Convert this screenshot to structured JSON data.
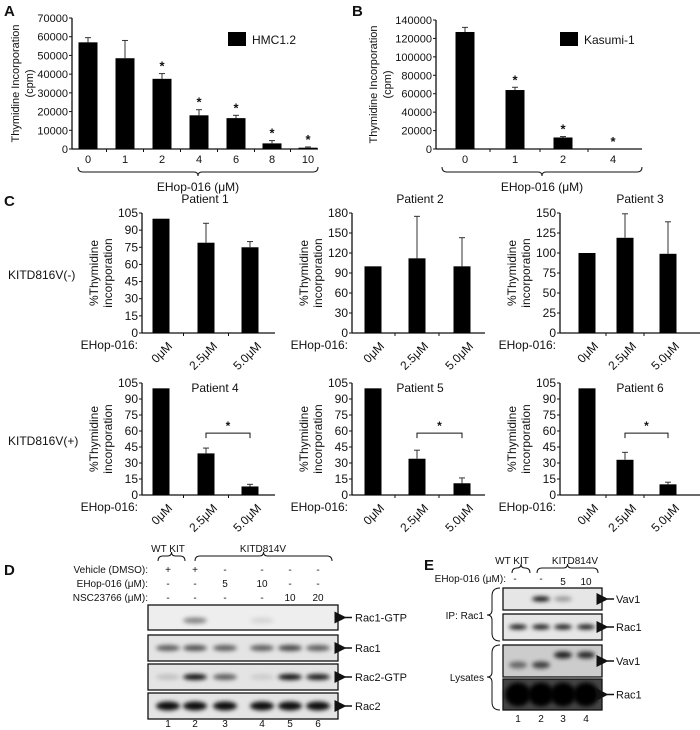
{
  "panels": {
    "A": "A",
    "B": "B",
    "C": "C",
    "D": "D",
    "E": "E"
  },
  "chart_data": [
    {
      "id": "A",
      "type": "bar",
      "legend": "HMC1.2",
      "legend_placement": "top-right",
      "ylabel": [
        "Thymidine Incorporation",
        "(cpm)"
      ],
      "xlabel": "EHop-016 (μM)",
      "categories": [
        "0",
        "1",
        "2",
        "4",
        "6",
        "8",
        "10"
      ],
      "values": [
        57000,
        48500,
        37500,
        18000,
        16500,
        3000,
        700
      ],
      "errors": [
        2500,
        9500,
        2800,
        3000,
        1500,
        1500,
        400
      ],
      "significant": [
        false,
        false,
        true,
        true,
        true,
        true,
        true
      ],
      "yticks": [
        0,
        10000,
        20000,
        30000,
        40000,
        50000,
        60000,
        70000
      ],
      "ylim": [
        0,
        70000
      ]
    },
    {
      "id": "B",
      "type": "bar",
      "legend": "Kasumi-1",
      "legend_placement": "top-right",
      "ylabel": [
        "Thymidine Incorporation",
        "(cpm)"
      ],
      "xlabel": "EHop-016 (μM)",
      "categories": [
        "0",
        "1",
        "2",
        "4"
      ],
      "values": [
        127000,
        64000,
        12500,
        0
      ],
      "errors": [
        5000,
        3000,
        1000,
        0
      ],
      "significant": [
        false,
        true,
        true,
        true
      ],
      "yticks": [
        0,
        20000,
        40000,
        60000,
        80000,
        100000,
        120000,
        140000
      ],
      "ylim": [
        0,
        140000
      ]
    },
    {
      "id": "P1",
      "type": "bar",
      "title": "Patient 1",
      "ylabel": [
        "%Thymidine",
        "incorporation"
      ],
      "xprefix": "EHop-016:",
      "categories": [
        "0μM",
        "2.5μM",
        "5.0μM"
      ],
      "values": [
        100,
        79,
        75
      ],
      "errors": [
        0,
        17,
        5
      ],
      "yticks": [
        0,
        15,
        30,
        45,
        60,
        75,
        90,
        105
      ],
      "ylim": [
        0,
        105
      ]
    },
    {
      "id": "P2",
      "type": "bar",
      "title": "Patient 2",
      "ylabel": [
        "%Thymidine",
        "incorporation"
      ],
      "xprefix": "EHop-016:",
      "categories": [
        "0μM",
        "2.5μM",
        "5.0μM"
      ],
      "values": [
        100,
        112,
        100
      ],
      "errors": [
        0,
        63,
        43
      ],
      "yticks": [
        0,
        30,
        60,
        90,
        120,
        150,
        180
      ],
      "ylim": [
        0,
        180
      ]
    },
    {
      "id": "P3",
      "type": "bar",
      "title": "Patient 3",
      "ylabel": [
        "%Thymidine",
        "incorporation"
      ],
      "xprefix": "EHop-016:",
      "categories": [
        "0μM",
        "2.5μM",
        "5.0μM"
      ],
      "values": [
        100,
        119,
        99
      ],
      "errors": [
        0,
        30,
        40
      ],
      "yticks": [
        0,
        25,
        50,
        75,
        100,
        125,
        150
      ],
      "ylim": [
        0,
        150
      ]
    },
    {
      "id": "P4",
      "type": "bar",
      "title": "Patient 4",
      "ylabel": [
        "%Thymidine",
        "incorporation"
      ],
      "xprefix": "EHop-016:",
      "categories": [
        "0μM",
        "2.5μM",
        "5.0μM"
      ],
      "values": [
        100,
        39,
        8
      ],
      "errors": [
        0,
        5,
        2
      ],
      "bracket": {
        "between": [
          1,
          2
        ],
        "label": "*"
      },
      "yticks": [
        0,
        15,
        30,
        45,
        60,
        75,
        90,
        105
      ],
      "ylim": [
        0,
        105
      ]
    },
    {
      "id": "P5",
      "type": "bar",
      "title": "Patient 5",
      "ylabel": [
        "%Thymidine",
        "incorporation"
      ],
      "xprefix": "EHop-016:",
      "categories": [
        "0μM",
        "2.5μM",
        "5.0μM"
      ],
      "values": [
        100,
        34,
        11
      ],
      "errors": [
        0,
        8,
        5
      ],
      "bracket": {
        "between": [
          1,
          2
        ],
        "label": "*"
      },
      "yticks": [
        0,
        15,
        30,
        45,
        60,
        75,
        90,
        105
      ],
      "ylim": [
        0,
        105
      ]
    },
    {
      "id": "P6",
      "type": "bar",
      "title": "Patient 6",
      "ylabel": [
        "%Thymidine",
        "incorporation"
      ],
      "xprefix": "EHop-016:",
      "categories": [
        "0μM",
        "2.5μM",
        "5.0μM"
      ],
      "values": [
        100,
        33,
        10
      ],
      "errors": [
        0,
        7,
        2
      ],
      "bracket": {
        "between": [
          1,
          2
        ],
        "label": "*"
      },
      "yticks": [
        0,
        15,
        30,
        45,
        60,
        75,
        90,
        105
      ],
      "ylim": [
        0,
        105
      ]
    }
  ],
  "row_labels": [
    "KITD816V(-)",
    "KITD816V(+)"
  ],
  "star": "*",
  "blot_D": {
    "groups": [
      "WT KIT",
      "KITD814V"
    ],
    "treatments": [
      {
        "label": "Vehicle (DMSO):",
        "values": [
          "+",
          "+",
          "-",
          "-",
          "-",
          "-"
        ]
      },
      {
        "label": "EHop-016 (μM):",
        "values": [
          "-",
          "-",
          "5",
          "10",
          "-",
          "-"
        ]
      },
      {
        "label": "NSC23766 (μM):",
        "values": [
          "-",
          "-",
          "-",
          "-",
          "10",
          "20"
        ]
      }
    ],
    "rows": [
      {
        "label": "Rac1-GTP",
        "band_intensity": [
          0,
          0.45,
          0,
          0.1,
          0,
          0
        ]
      },
      {
        "label": "Rac1",
        "band_intensity": [
          0.6,
          0.65,
          0.6,
          0.6,
          0.7,
          0.6
        ]
      },
      {
        "label": "Rac2-GTP",
        "band_intensity": [
          0.15,
          0.95,
          0.6,
          0.1,
          0.95,
          0.9
        ]
      },
      {
        "label": "Rac2",
        "band_intensity": [
          0.95,
          0.95,
          0.95,
          0.95,
          0.95,
          0.95
        ]
      }
    ],
    "lanes": [
      "1",
      "2",
      "3",
      "4",
      "5",
      "6"
    ]
  },
  "blot_E": {
    "groups": [
      "WT KIT",
      "KITD814V"
    ],
    "treatment": {
      "label": "EHop-016 (μM):",
      "values": [
        "-",
        "-",
        "5",
        "10"
      ]
    },
    "sections": [
      "IP: Rac1",
      "Lysates"
    ],
    "rows": [
      {
        "label": "Vav1",
        "band_intensity": [
          0,
          0.95,
          0.35,
          0
        ]
      },
      {
        "label": "Rac1",
        "band_intensity": [
          0.9,
          0.9,
          0.9,
          0.9
        ]
      },
      {
        "label": "Vav1",
        "band_intensity": [
          0.5,
          0.7,
          0.85,
          0.8
        ]
      },
      {
        "label": "Rac1",
        "band_intensity": [
          1,
          1,
          1,
          1
        ]
      }
    ],
    "lanes": [
      "1",
      "2",
      "3",
      "4"
    ]
  }
}
